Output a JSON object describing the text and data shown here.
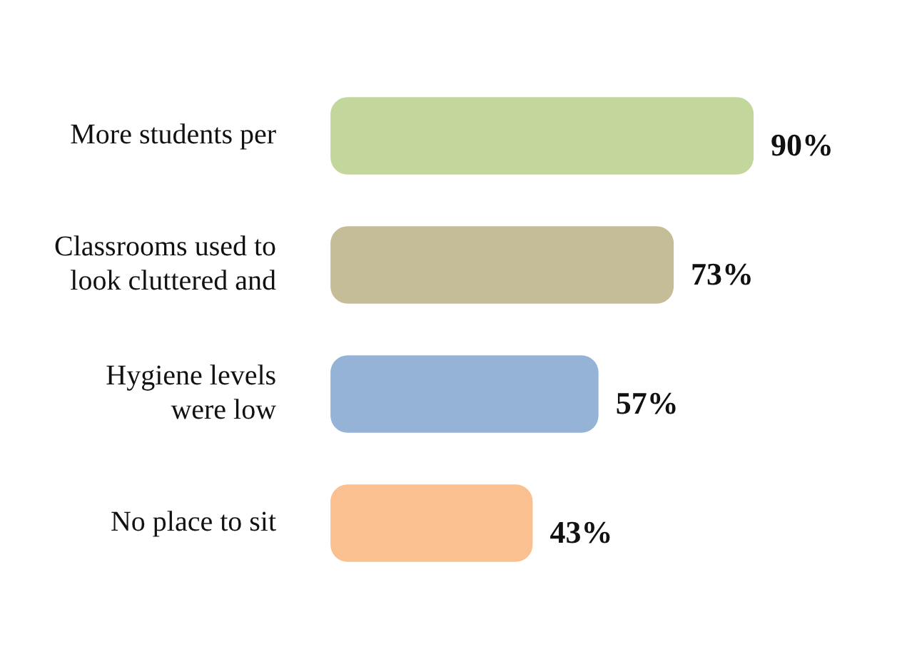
{
  "chart_data": {
    "type": "bar",
    "orientation": "horizontal",
    "categories": [
      "More students per",
      "Classrooms used to look cluttered and",
      "Hygiene levels were low",
      "No place to sit"
    ],
    "values": [
      90,
      73,
      57,
      43
    ],
    "colors": [
      "#c3d69b",
      "#c4bd97",
      "#95b3d7",
      "#fac090"
    ],
    "value_labels": [
      "90%",
      "73%",
      "57%",
      "43%"
    ]
  }
}
